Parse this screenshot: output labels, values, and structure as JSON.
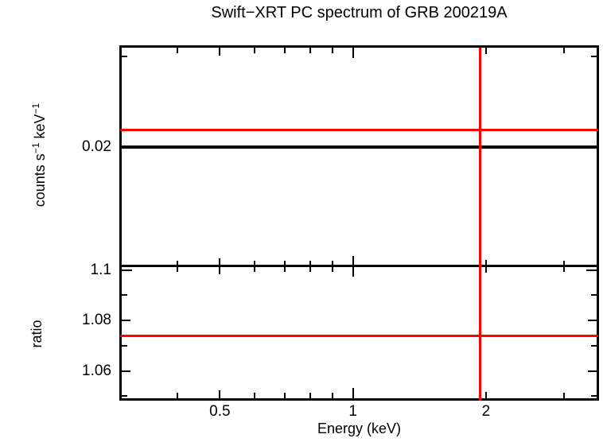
{
  "figure": {
    "background": "#ffffff",
    "frame_color": "#000000",
    "data_color": "#000000",
    "model_color": "#ff0000"
  },
  "chart_data": {
    "type": "line",
    "title": "Swift−XRT PC spectrum of GRB 200219A",
    "xlabel": "Energy (keV)",
    "x_scale": "log",
    "x_range": [
      0.298,
      3.58
    ],
    "x_ticks": {
      "major": [
        {
          "value": 0.5,
          "label": "0.5",
          "len": 10
        },
        {
          "value": 1,
          "label": "1",
          "len": 13
        },
        {
          "value": 2,
          "label": "2",
          "len": 8
        }
      ],
      "minor": [
        {
          "value": 0.4,
          "len": 7
        },
        {
          "value": 0.6,
          "len": 7
        },
        {
          "value": 0.7,
          "len": 7
        },
        {
          "value": 0.8,
          "len": 7
        },
        {
          "value": 0.9,
          "len": 7
        },
        {
          "value": 3,
          "len": 7
        }
      ]
    },
    "crosshair_energy_kev": 1.94,
    "panels": [
      {
        "name": "spectrum",
        "ylabel": "counts s⁻¹ keV⁻¹",
        "ylabel_parts": {
          "part1": "counts s",
          "sup1": "−1",
          "part2": " keV",
          "sup2": "−1"
        },
        "y_scale": "log",
        "y_range": [
          0.0118,
          0.0313
        ],
        "y_ticks": {
          "major": [
            {
              "value": 0.02,
              "label": "0.02",
              "len": 13
            }
          ],
          "minor": [
            {
              "value": 0.03,
              "len": 7
            }
          ]
        },
        "series": [
          {
            "name": "data",
            "color": "#000000",
            "style": "hline",
            "value": 0.02,
            "thickness": 4
          },
          {
            "name": "model",
            "color": "#ff0000",
            "style": "hline",
            "value": 0.0216,
            "thickness": 3
          }
        ]
      },
      {
        "name": "ratio",
        "ylabel": "ratio",
        "y_scale": "linear",
        "y_range": [
          1.0487,
          1.1016
        ],
        "y_ticks": {
          "major": [
            {
              "value": 1.1,
              "label": "1.1",
              "len": 13
            },
            {
              "value": 1.08,
              "label": "1.08",
              "len": 11
            },
            {
              "value": 1.06,
              "label": "1.06",
              "len": 11
            }
          ],
          "minor": [
            {
              "value": 1.09,
              "len": 7
            },
            {
              "value": 1.07,
              "len": 7
            },
            {
              "value": 1.05,
              "len": 7
            }
          ]
        },
        "series": [
          {
            "name": "model-ratio",
            "color": "#ff0000",
            "style": "hline",
            "value": 1.074,
            "thickness": 3
          }
        ]
      }
    ],
    "vlines": [
      {
        "name": "crosshair",
        "color": "#ff0000",
        "x": 1.94,
        "thickness": 3
      }
    ],
    "legend": null,
    "grid": false
  }
}
